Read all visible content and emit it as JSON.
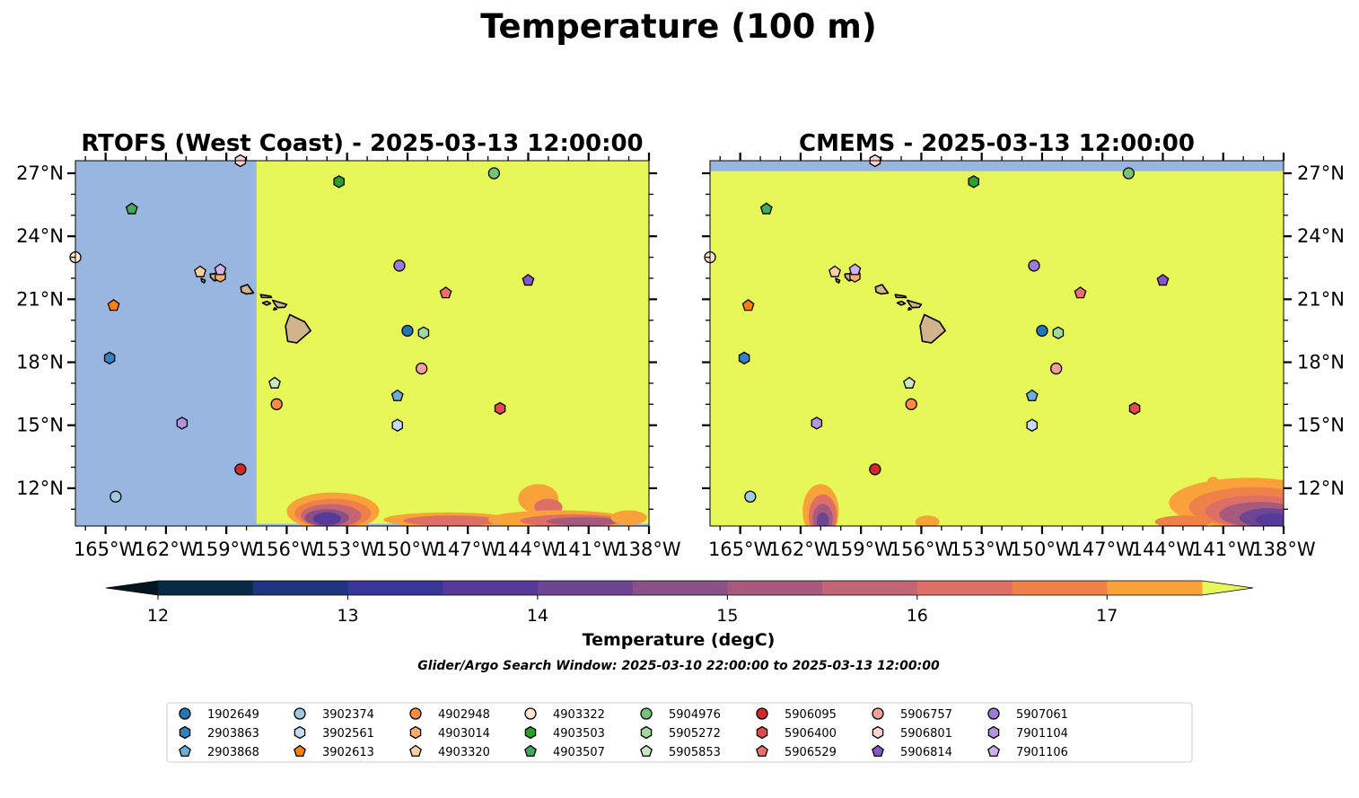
{
  "figure": {
    "suptitle": "Temperature (100 m)",
    "search_window": "Glider/Argo Search Window: 2025-03-10 22:00:00 to 2025-03-13 12:00:00"
  },
  "chart_data": [
    {
      "type": "heatmap",
      "title": "RTOFS (West Coast) - 2025-03-13 12:00:00",
      "xlim": [
        -166.5,
        -138
      ],
      "ylim": [
        10.2,
        27.6
      ],
      "xticks": [
        -165,
        -162,
        -159,
        -156,
        -153,
        -150,
        -147,
        -144,
        -141,
        -138
      ],
      "xtick_labels": [
        "165°W",
        "162°W",
        "159°W",
        "156°W",
        "153°W",
        "150°W",
        "147°W",
        "144°W",
        "141°W",
        "138°W"
      ],
      "yticks": [
        12,
        15,
        18,
        21,
        24,
        27
      ],
      "ytick_labels": [
        "12°N",
        "15°N",
        "18°N",
        "21°N",
        "24°N",
        "27°N"
      ],
      "ytick_side": "left",
      "model_domain_lon_min": -157.5,
      "model_domain_lat_min": 10.3,
      "background_value": "above 17.5 degC"
    },
    {
      "type": "heatmap",
      "title": "CMEMS - 2025-03-13 12:00:00",
      "xlim": [
        -166.5,
        -138
      ],
      "ylim": [
        10.2,
        27.6
      ],
      "xticks": [
        -165,
        -162,
        -159,
        -156,
        -153,
        -150,
        -147,
        -144,
        -141,
        -138
      ],
      "xtick_labels": [
        "165°W",
        "162°W",
        "159°W",
        "156°W",
        "153°W",
        "150°W",
        "147°W",
        "144°W",
        "141°W",
        "138°W"
      ],
      "yticks": [
        12,
        15,
        18,
        21,
        24,
        27
      ],
      "ytick_labels": [
        "12°N",
        "15°N",
        "18°N",
        "21°N",
        "24°N",
        "27°N"
      ],
      "ytick_side": "right",
      "model_domain_lat_max": 27.1,
      "background_value": "above 17.5 degC"
    }
  ],
  "colorbar": {
    "label": "Temperature (degC)",
    "ticks": [
      12,
      13,
      14,
      15,
      16,
      17
    ],
    "levels": [
      12,
      12.5,
      13,
      13.5,
      14,
      14.5,
      15,
      15.5,
      16,
      16.5,
      17,
      17.5
    ],
    "colors": [
      "#062a44",
      "#1f3481",
      "#3a3598",
      "#553a99",
      "#6e4592",
      "#8a5088",
      "#a65b7e",
      "#c26575",
      "#dd6f66",
      "#f0804a",
      "#f9a23a",
      "#f6cd47"
    ],
    "extend_low_color": "#021521",
    "extend_high_color": "#e6f757"
  },
  "land_color": "#d2b48c",
  "nodata_color": "#98b6e0",
  "floats": [
    {
      "id": "1902649",
      "marker": "circle",
      "color": "#1f77b4",
      "lon": -150.0,
      "lat": 19.5
    },
    {
      "id": "2903863",
      "marker": "hexagon",
      "color": "#3182bd",
      "lon": -164.8,
      "lat": 18.2
    },
    {
      "id": "2903868",
      "marker": "pentagon",
      "color": "#6baed6",
      "lon": -150.5,
      "lat": 16.4
    },
    {
      "id": "3902374",
      "marker": "circle",
      "color": "#9ecae1",
      "lon": -164.5,
      "lat": 11.6
    },
    {
      "id": "3902561",
      "marker": "hexagon",
      "color": "#c6dbef",
      "lon": -150.5,
      "lat": 15.0
    },
    {
      "id": "3902613",
      "marker": "pentagon",
      "color": "#ff7f0e",
      "lon": -164.6,
      "lat": 20.7
    },
    {
      "id": "4902948",
      "marker": "circle",
      "color": "#fd8d3c",
      "lon": -156.5,
      "lat": 16.0
    },
    {
      "id": "4903014",
      "marker": "hexagon",
      "color": "#fdae6b",
      "lon": -159.3,
      "lat": 22.1
    },
    {
      "id": "4903320",
      "marker": "pentagon",
      "color": "#fdd0a2",
      "lon": -160.3,
      "lat": 22.3
    },
    {
      "id": "4903322",
      "marker": "circle",
      "color": "#fee6ce",
      "lon": -166.5,
      "lat": 23.0
    },
    {
      "id": "4903503",
      "marker": "hexagon",
      "color": "#2ca02c",
      "lon": -153.4,
      "lat": 26.6
    },
    {
      "id": "4903507",
      "marker": "pentagon",
      "color": "#41ab5d",
      "lon": -163.7,
      "lat": 25.3
    },
    {
      "id": "5904976",
      "marker": "circle",
      "color": "#74c476",
      "lon": -145.7,
      "lat": 27.0
    },
    {
      "id": "5905272",
      "marker": "hexagon",
      "color": "#a1d99b",
      "lon": -149.2,
      "lat": 19.4
    },
    {
      "id": "5905853",
      "marker": "pentagon",
      "color": "#c7e9c0",
      "lon": -156.6,
      "lat": 17.0
    },
    {
      "id": "5906095",
      "marker": "circle",
      "color": "#d62728",
      "lon": -158.3,
      "lat": 12.9
    },
    {
      "id": "5906400",
      "marker": "hexagon",
      "color": "#e34a4a",
      "lon": -145.4,
      "lat": 15.8
    },
    {
      "id": "5906529",
      "marker": "pentagon",
      "color": "#ef6f6c",
      "lon": -148.1,
      "lat": 21.3
    },
    {
      "id": "5906757",
      "marker": "circle",
      "color": "#f4a09a",
      "lon": -149.3,
      "lat": 17.7
    },
    {
      "id": "5906801",
      "marker": "hexagon",
      "color": "#fcd5d2",
      "lon": -158.3,
      "lat": 27.6
    },
    {
      "id": "5906814",
      "marker": "pentagon",
      "color": "#8856c9",
      "lon": -144.0,
      "lat": 21.9
    },
    {
      "id": "5907061",
      "marker": "circle",
      "color": "#9e79d6",
      "lon": -150.4,
      "lat": 22.6
    },
    {
      "id": "7901104",
      "marker": "hexagon",
      "color": "#b394df",
      "lon": -161.2,
      "lat": 15.1
    },
    {
      "id": "7901106",
      "marker": "pentagon",
      "color": "#cfb0f0",
      "lon": -159.3,
      "lat": 22.4
    }
  ],
  "legend": {
    "placement": "bottom-center",
    "columns": 9
  }
}
